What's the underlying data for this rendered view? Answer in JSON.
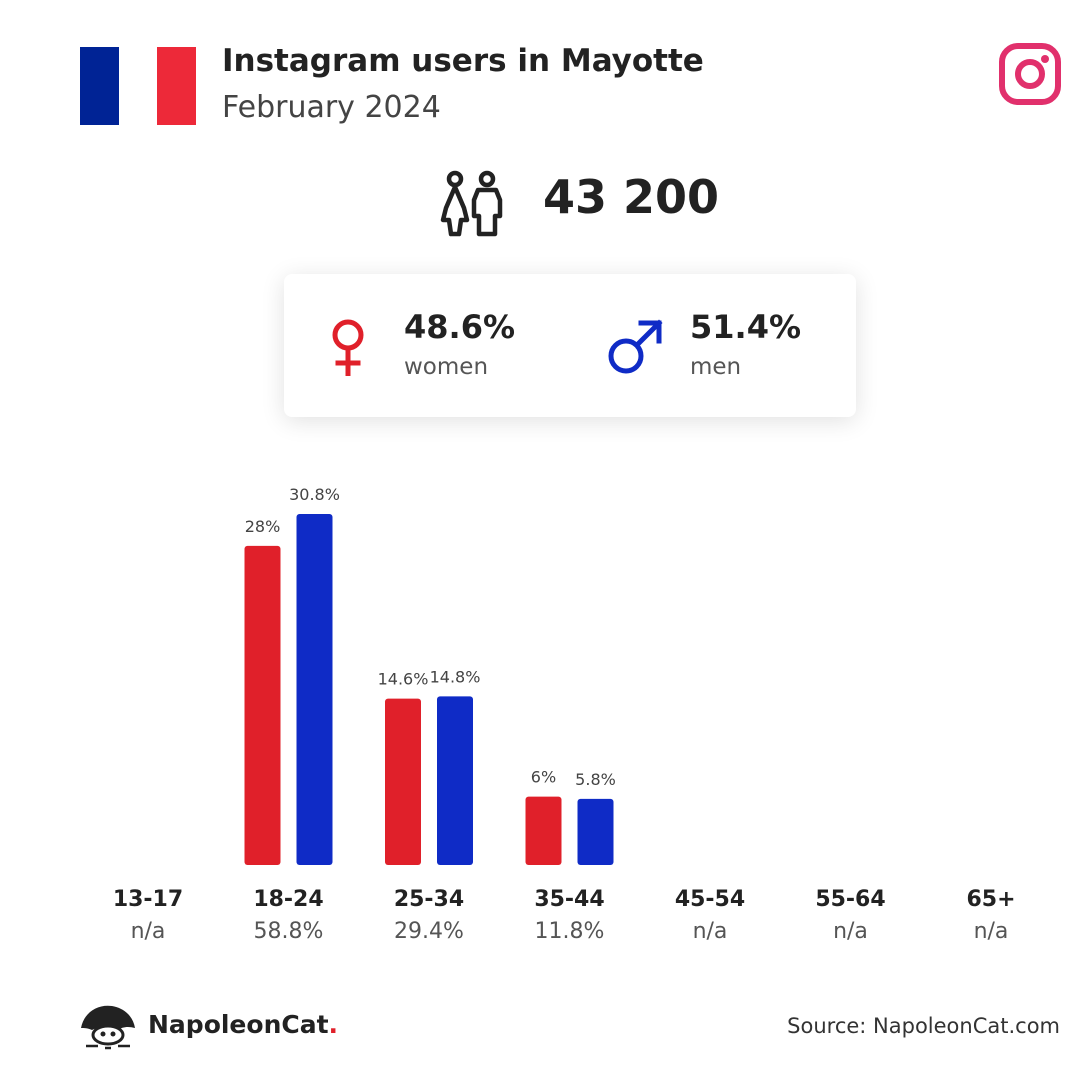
{
  "header": {
    "title": "Instagram users in Mayotte",
    "subtitle": "February 2024"
  },
  "flag_colors": [
    "#002395",
    "#ffffff",
    "#ed2939"
  ],
  "brand_icon": "instagram-icon",
  "total_users": "43 200",
  "gender": {
    "women": {
      "value": "48.6%",
      "label": "women",
      "icon": "female-symbol-icon",
      "color": "#e0202a"
    },
    "men": {
      "value": "51.4%",
      "label": "men",
      "icon": "male-symbol-icon",
      "color": "#0f2bc6"
    }
  },
  "chart_data": {
    "type": "bar",
    "categories": [
      "13-17",
      "18-24",
      "25-34",
      "35-44",
      "45-54",
      "55-64",
      "65+"
    ],
    "category_totals": [
      "n/a",
      "58.8%",
      "29.4%",
      "11.8%",
      "n/a",
      "n/a",
      "n/a"
    ],
    "series": [
      {
        "name": "women",
        "color": "#e0202a",
        "values": [
          null,
          28,
          14.6,
          6,
          null,
          null,
          null
        ],
        "labels": [
          "",
          "28%",
          "14.6%",
          "6%",
          "",
          "",
          ""
        ]
      },
      {
        "name": "men",
        "color": "#0f2bc6",
        "values": [
          null,
          30.8,
          14.8,
          5.8,
          null,
          null,
          null
        ],
        "labels": [
          "",
          "30.8%",
          "14.8%",
          "5.8%",
          "",
          "",
          ""
        ]
      }
    ],
    "ylim": [
      0,
      30.8
    ],
    "grid": false,
    "legend": "none"
  },
  "footer": {
    "brand_name": "NapoleonCat",
    "brand_dot": ".",
    "source": "Source: NapoleonCat.com"
  }
}
